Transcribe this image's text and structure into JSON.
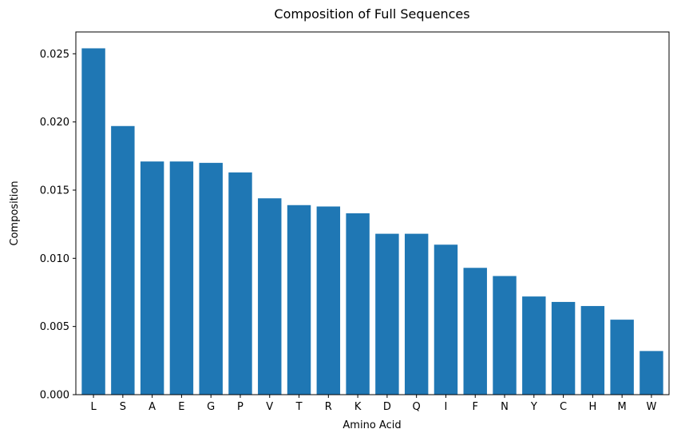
{
  "chart_data": {
    "type": "bar",
    "title": "Composition of Full Sequences",
    "xlabel": "Amino Acid",
    "ylabel": "Composition",
    "categories": [
      "L",
      "S",
      "A",
      "E",
      "G",
      "P",
      "V",
      "T",
      "R",
      "K",
      "D",
      "Q",
      "I",
      "F",
      "N",
      "Y",
      "C",
      "H",
      "M",
      "W"
    ],
    "values": [
      0.0254,
      0.0197,
      0.0171,
      0.0171,
      0.017,
      0.0163,
      0.0144,
      0.0139,
      0.0138,
      0.0133,
      0.0118,
      0.0118,
      0.011,
      0.0093,
      0.0087,
      0.0072,
      0.0068,
      0.0065,
      0.0055,
      0.0032
    ],
    "ylim": [
      0,
      0.0266
    ],
    "yticks": [
      "0.000",
      "0.005",
      "0.010",
      "0.015",
      "0.020",
      "0.025"
    ],
    "bar_color": "#1f77b4",
    "grid": false
  }
}
